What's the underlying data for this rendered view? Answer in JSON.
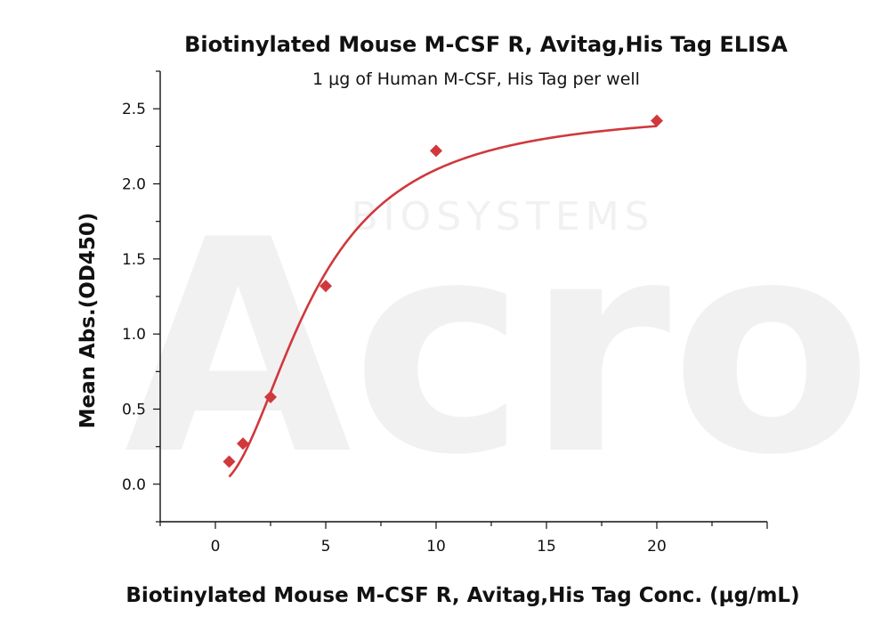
{
  "chart_data": {
    "type": "scatter",
    "title": "Biotinylated Mouse M-CSF R, Avitag,His Tag ELISA",
    "subtitle": "1 μg of Human M-CSF, His Tag per well",
    "xlabel": "Biotinylated Mouse M-CSF R, Avitag,His Tag Conc. (μg/mL)",
    "ylabel": "Mean Abs.(OD450)",
    "xlim": [
      -2.5,
      25
    ],
    "ylim": [
      -0.25,
      2.75
    ],
    "x_ticks": [
      0,
      5,
      10,
      15,
      20
    ],
    "y_ticks": [
      0.0,
      0.5,
      1.0,
      1.5,
      2.0,
      2.5
    ],
    "x_tick_labels": [
      "0",
      "5",
      "10",
      "15",
      "20"
    ],
    "y_tick_labels": [
      "0.0",
      "0.5",
      "1.0",
      "1.5",
      "2.0",
      "2.5"
    ],
    "grid": false,
    "marker": "diamond",
    "color": "#d0383c",
    "points": [
      {
        "x": 0.625,
        "y": 0.15
      },
      {
        "x": 1.25,
        "y": 0.27
      },
      {
        "x": 2.5,
        "y": 0.58
      },
      {
        "x": 5,
        "y": 1.32
      },
      {
        "x": 10,
        "y": 2.22
      },
      {
        "x": 20,
        "y": 2.42
      }
    ],
    "fit": {
      "type": "4PL",
      "bottom": 0.0,
      "top": 2.5,
      "ec50": 4.4,
      "hill": 2.0,
      "x_range": [
        0.625,
        20
      ]
    }
  },
  "watermark": {
    "brand": "Acro",
    "sub": "BIOSYSTEMS"
  }
}
